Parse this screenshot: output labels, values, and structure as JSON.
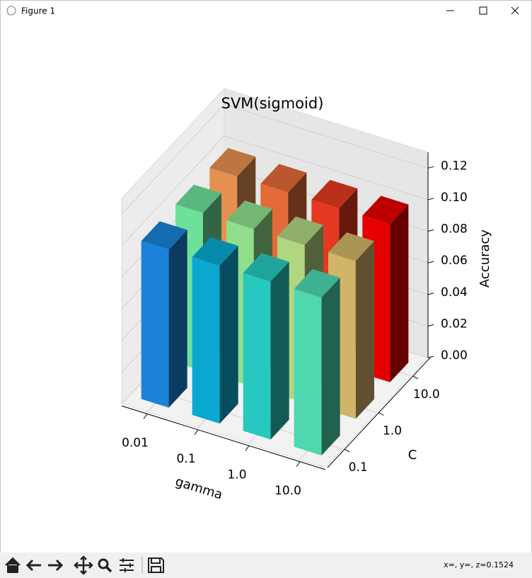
{
  "window": {
    "title": "Figure 1",
    "status": "x=, y=, z=0.1524"
  },
  "chart_data": {
    "type": "bar3d",
    "title": "SVM(sigmoid)",
    "x_label": "gamma",
    "y_label": "C",
    "z_label": "Accuracy",
    "x_categories": [
      "0.01",
      "0.1",
      "1.0",
      "10.0"
    ],
    "y_categories": [
      "0.1",
      "1.0",
      "10.0"
    ],
    "values": [
      [
        0.1,
        0.1,
        0.1,
        0.1
      ],
      [
        0.1,
        0.1,
        0.1,
        0.1
      ],
      [
        0.1,
        0.1,
        0.1,
        0.1
      ]
    ],
    "colors": [
      [
        "#1a82d9",
        "#0aa8d0",
        "#26c8c0",
        "#4ed8b0"
      ],
      [
        "#6ee09a",
        "#90de8c",
        "#b0d682",
        "#d2b468"
      ],
      [
        "#e59050",
        "#e46a38",
        "#e43820",
        "#e50000"
      ]
    ],
    "zlim": [
      0,
      0.13
    ],
    "zticks": [
      {
        "value": 0,
        "label": "0.00"
      },
      {
        "value": 0.02,
        "label": "0.02"
      },
      {
        "value": 0.04,
        "label": "0.04"
      },
      {
        "value": 0.06,
        "label": "0.06"
      },
      {
        "value": 0.08,
        "label": "0.08"
      },
      {
        "value": 0.1,
        "label": "0.10"
      },
      {
        "value": 0.12,
        "label": "0.12"
      }
    ],
    "grid": true
  }
}
